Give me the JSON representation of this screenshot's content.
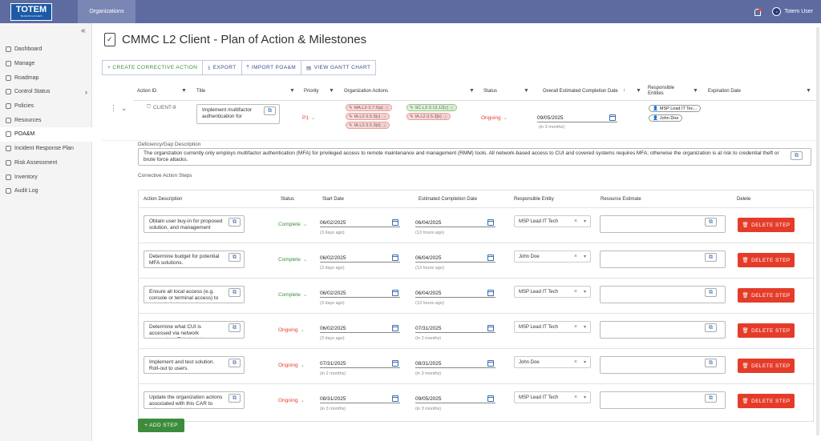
{
  "topbar": {
    "logo": "TOTEM",
    "logo_sub": "TECHNOLOGIES",
    "org_tab": "Organizations",
    "user": "Totem User",
    "avatar": "tt"
  },
  "sidebar": {
    "items": [
      {
        "label": "Dashboard"
      },
      {
        "label": "Manage"
      },
      {
        "label": "Roadmap"
      },
      {
        "label": "Control Status"
      },
      {
        "label": "Policies"
      },
      {
        "label": "Resources"
      },
      {
        "label": "POA&M"
      },
      {
        "label": "Incident Response Plan"
      },
      {
        "label": "Risk Assessment"
      },
      {
        "label": "Inventory"
      },
      {
        "label": "Audit Log"
      }
    ]
  },
  "page": {
    "title": "CMMC L2 Client - Plan of Action & Milestones"
  },
  "toolbar": {
    "create": "+ CREATE CORRECTIVE ACTION",
    "export": "EXPORT",
    "import": "IMPORT POA&M",
    "gantt": "VIEW GANTT CHART"
  },
  "columns": {
    "action_id": "Action ID",
    "title": "Title",
    "priority": "Priority",
    "org_actions": "Organization Actions",
    "status": "Status",
    "completion": "Overall Estimated Completion Date",
    "responsible": "Responsible Entities",
    "expiration": "Expiration Date"
  },
  "row": {
    "id": "CLIENT-9",
    "title": "Implement multifactor authentication for",
    "priority": "P1",
    "tags": [
      "MA.L2-3.7.5[a]",
      "SC.L2-3.13.12[c]",
      "IA.L2-3.5.3[c]",
      "IA.L2-3.5.3[b]",
      "IA.L2-3.5.3[d]"
    ],
    "status": "Ongoing",
    "completion_date": "09/05/2025",
    "completion_rel": "(in 3 months)",
    "entities": [
      "MSP Lead IT Tec...",
      "John Doe"
    ]
  },
  "deficiency": {
    "label": "Deficiency/Gap Description",
    "text": "The organization currently only employs multifactor authentication (MFA) for privileged access to remote maintenance and management (RMM) tools.  All network-based access to CUI and covered systems requires MFA; otherwise the organization is at risk to credential theft or brute force attacks."
  },
  "steps_label": "Corrective Action Steps",
  "step_columns": {
    "desc": "Action Description",
    "status": "Status",
    "start": "Start Date",
    "est": "Estimated Completion Date",
    "entity": "Responsible Entity",
    "resource": "Resource Estimate",
    "delete": "Delete"
  },
  "steps": [
    {
      "desc": "Obtain user buy-in for proposed solution, and management approval",
      "status": "Complete",
      "start": "06/02/2025",
      "start_rel": "(3 days ago)",
      "est": "06/04/2025",
      "est_rel": "(13 hours ago)",
      "entity": "MSP Lead IT Tech"
    },
    {
      "desc": "Determine budget for potential MFA solutions.",
      "status": "Complete",
      "start": "06/02/2025",
      "start_rel": "(3 days ago)",
      "est": "06/04/2025",
      "est_rel": "(13 hours ago)",
      "entity": "John Doe"
    },
    {
      "desc": "Ensure all local access (e.g. console or terminal access) to network devices such as",
      "status": "Complete",
      "start": "06/02/2025",
      "start_rel": "(3 days ago)",
      "est": "06/04/2025",
      "est_rel": "(13 hours ago)",
      "entity": "MSP Lead IT Tech"
    },
    {
      "desc": "Determine what CUI is accessed via network connection. This includes",
      "status": "Ongoing",
      "start": "06/02/2025",
      "start_rel": "(3 days ago)",
      "est": "07/31/2025",
      "est_rel": "(in 2 months)",
      "entity": "MSP Lead IT Tech"
    },
    {
      "desc": "Implement and test solution. Roll-out to users.",
      "status": "Ongoing",
      "start": "07/31/2025",
      "start_rel": "(in 2 months)",
      "est": "08/31/2025",
      "est_rel": "(in 3 months)",
      "entity": "John Doe"
    },
    {
      "desc": "Update the organization actions associated with this CAR to reference updated",
      "status": "Ongoing",
      "start": "08/31/2025",
      "start_rel": "(in 3 months)",
      "est": "09/05/2025",
      "est_rel": "(in 3 months)",
      "entity": "MSP Lead IT Tech"
    }
  ],
  "delete_label": "DELETE STEP",
  "add_step": "+ ADD STEP",
  "colors": {
    "accent": "#5d6ba1",
    "complete": "#3e8e3e",
    "ongoing": "#e53c2a",
    "delete": "#e53c2a",
    "add": "#3c8c3c"
  }
}
